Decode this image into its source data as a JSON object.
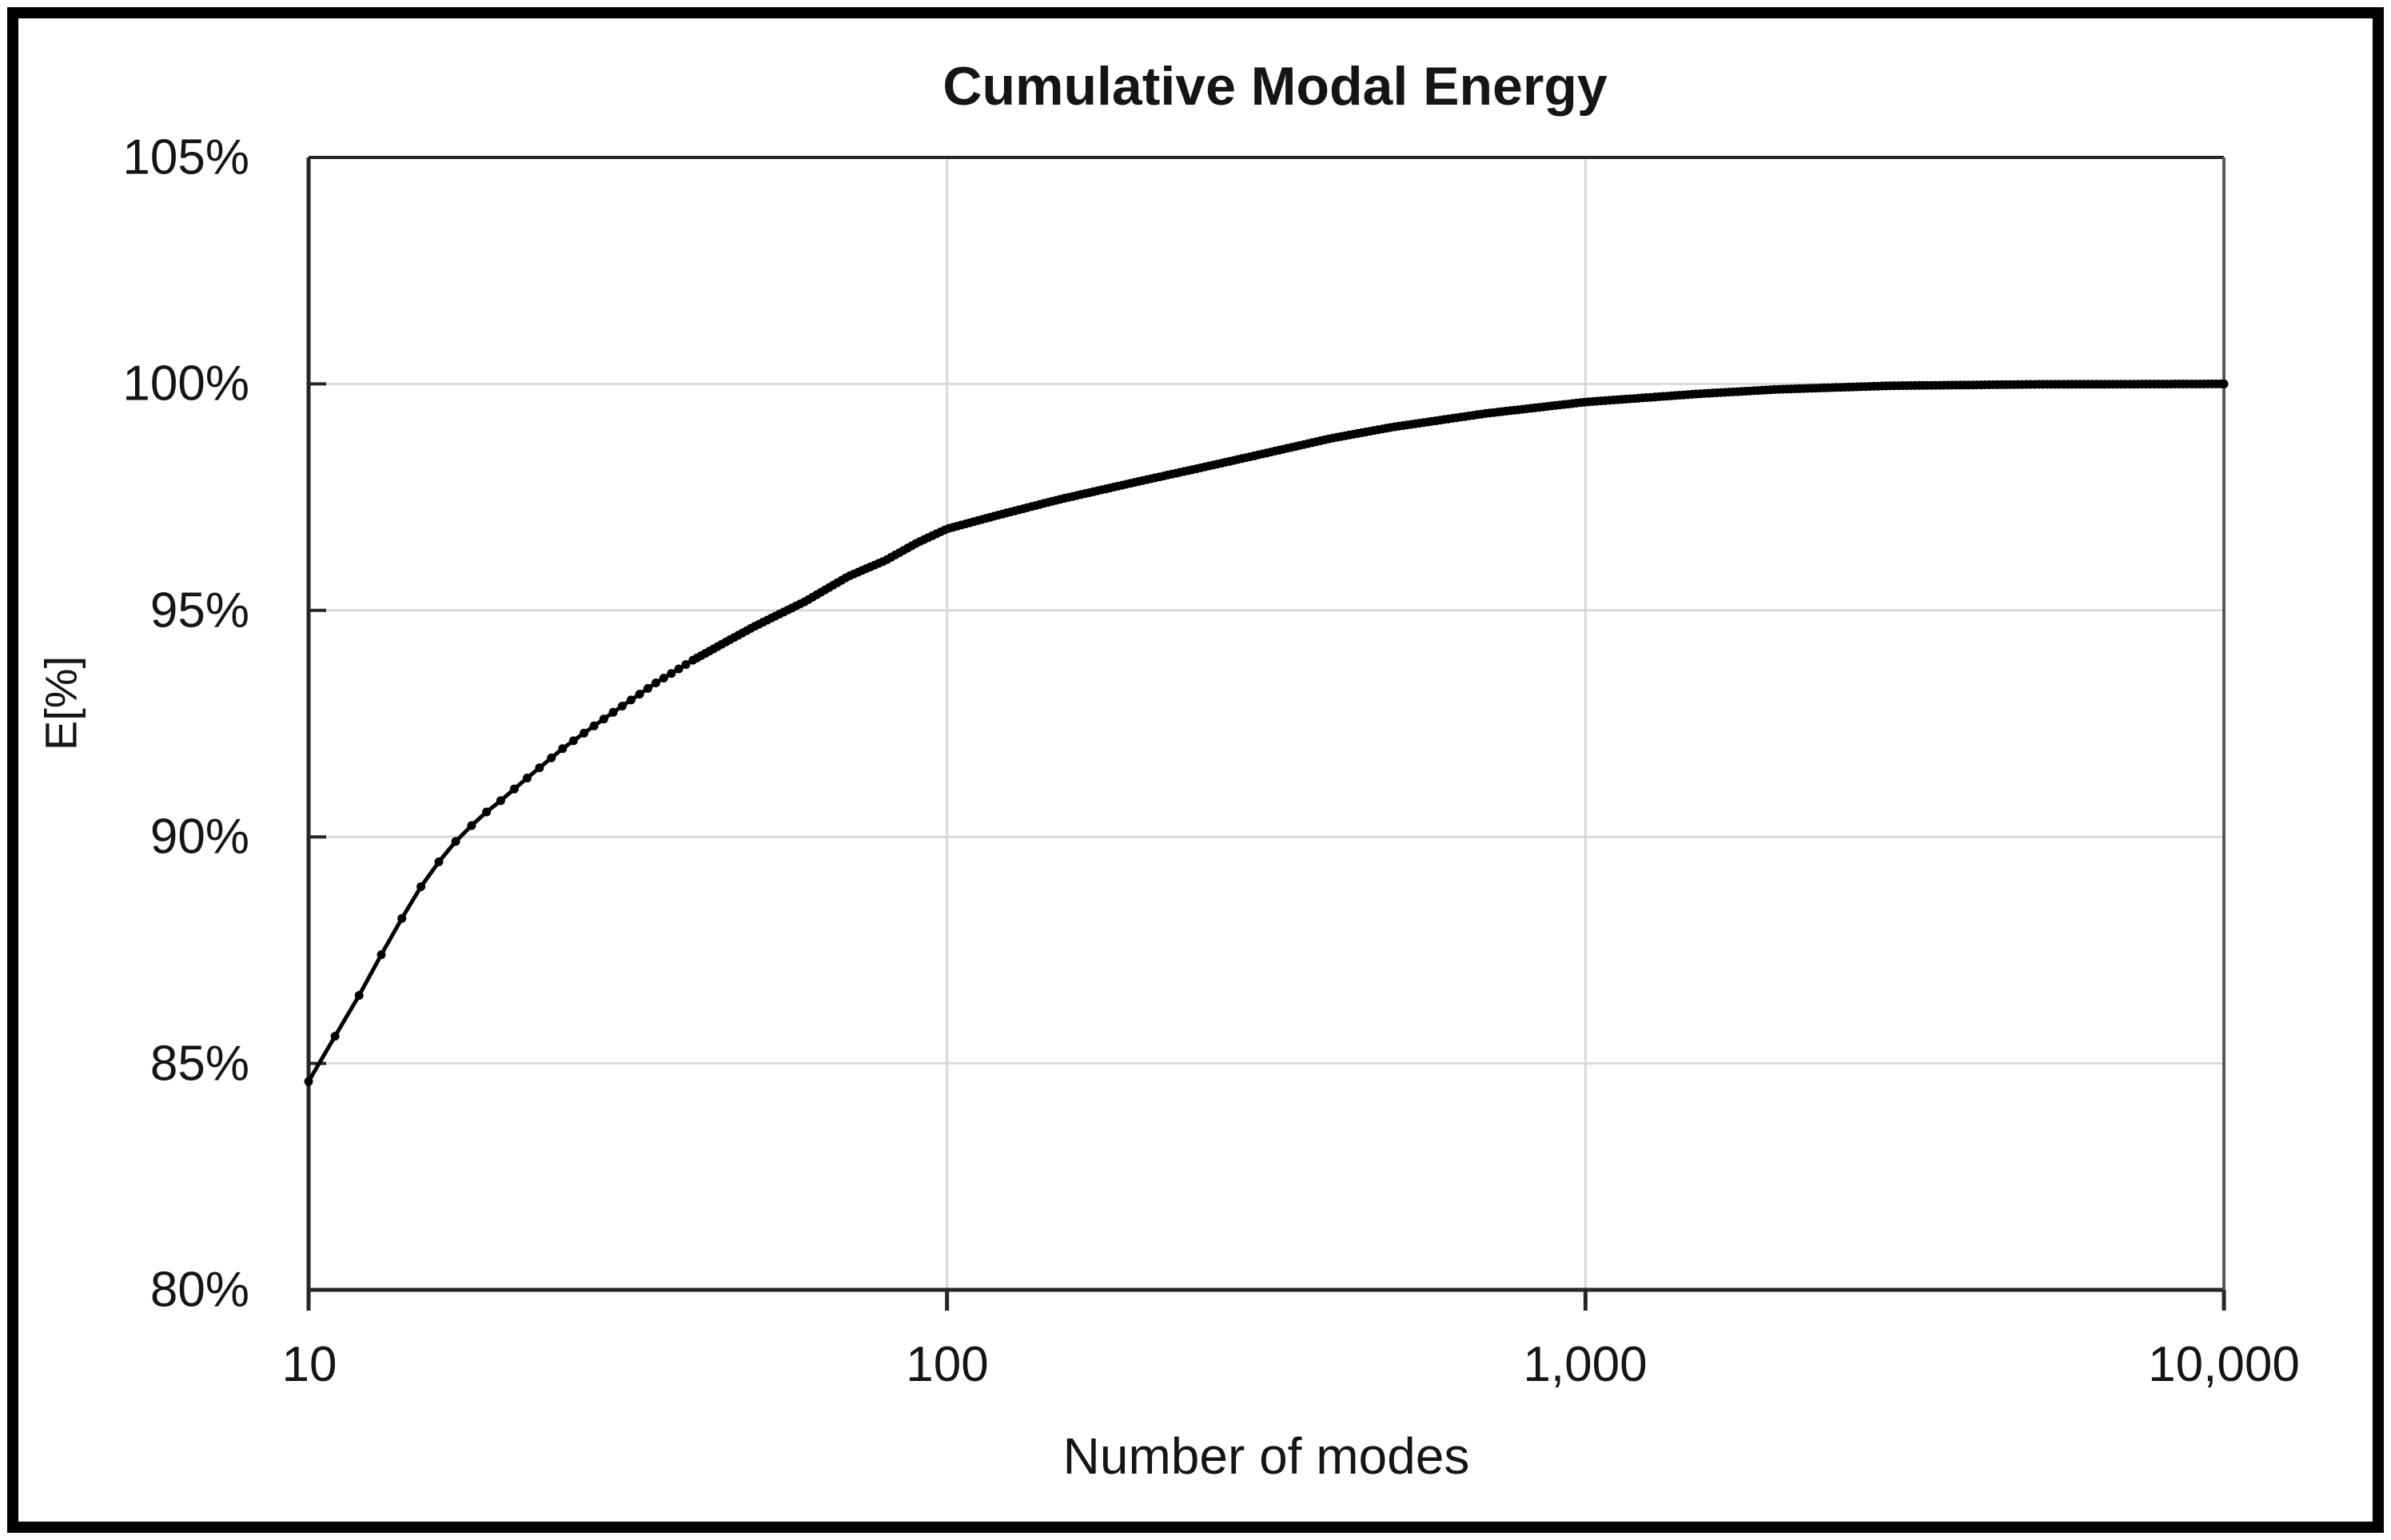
{
  "figure": {
    "title": "Cumulative Modal Energy"
  },
  "chart_data": {
    "type": "line",
    "title": "Cumulative Modal Energy",
    "xlabel": "Number of modes",
    "ylabel": "E[%]",
    "x_scale": "log",
    "xlim": [
      10,
      10000
    ],
    "ylim_percent": [
      80,
      105
    ],
    "y_tick_step_percent": 5,
    "y_tick_labels": [
      "105%",
      "100%",
      "95%",
      "90%",
      "85%",
      "80%"
    ],
    "x_tick_labels": [
      "10",
      "100",
      "1,000",
      "10,000"
    ],
    "x_tick_values": [
      10,
      100,
      1000,
      10000
    ],
    "grid": true,
    "legend_position": "none",
    "marker": "filled-circle",
    "marker_color": "#000000",
    "line_color": "#000000",
    "gridline_color": "#d9d9d9",
    "axis_border_color": "#262626",
    "right_border_color": "#595959",
    "series": [
      {
        "name": "Cumulative modal energy",
        "points_n_epercent": [
          [
            10,
            84.6
          ],
          [
            11,
            85.6
          ],
          [
            12,
            86.5
          ],
          [
            13,
            87.4
          ],
          [
            14,
            88.2
          ],
          [
            15,
            88.9
          ],
          [
            16,
            89.45
          ],
          [
            17,
            89.9
          ],
          [
            18,
            90.25
          ],
          [
            19,
            90.55
          ],
          [
            20,
            90.8
          ],
          [
            22,
            91.3
          ],
          [
            25,
            91.95
          ],
          [
            28,
            92.45
          ],
          [
            30,
            92.75
          ],
          [
            35,
            93.4
          ],
          [
            40,
            93.9
          ],
          [
            45,
            94.3
          ],
          [
            50,
            94.65
          ],
          [
            60,
            95.2
          ],
          [
            70,
            95.75
          ],
          [
            80,
            96.1
          ],
          [
            90,
            96.5
          ],
          [
            100,
            96.8
          ],
          [
            120,
            97.1
          ],
          [
            150,
            97.45
          ],
          [
            200,
            97.85
          ],
          [
            250,
            98.15
          ],
          [
            300,
            98.4
          ],
          [
            400,
            98.8
          ],
          [
            500,
            99.05
          ],
          [
            700,
            99.35
          ],
          [
            1000,
            99.6
          ],
          [
            1500,
            99.78
          ],
          [
            2000,
            99.88
          ],
          [
            3000,
            99.96
          ],
          [
            5000,
            99.99
          ],
          [
            10000,
            100.0
          ]
        ]
      }
    ]
  }
}
